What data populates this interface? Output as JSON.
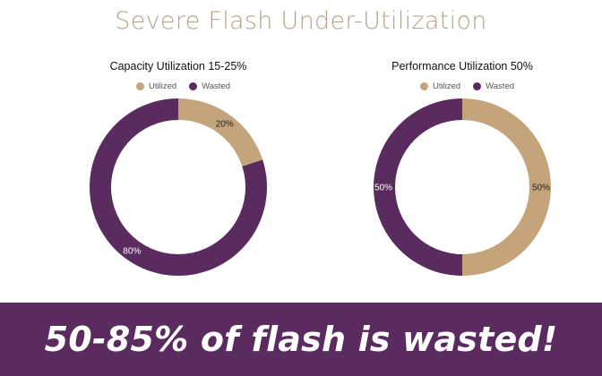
{
  "slide": {
    "title": "Severe Flash Under-Utilization"
  },
  "banner": {
    "text": "50-85% of flash is wasted!"
  },
  "colors": {
    "utilized": "#c4a47a",
    "wasted": "#5a2b5e",
    "title": "#b7a285"
  },
  "chart_data": [
    {
      "type": "pie",
      "title": "Capacity Utilization 15-25%",
      "legend": [
        "Utilized",
        "Wasted"
      ],
      "legend_position": "top",
      "donut": true,
      "slices": [
        {
          "name": "Utilized",
          "value": 20,
          "label": "20%"
        },
        {
          "name": "Wasted",
          "value": 80,
          "label": "80%"
        }
      ]
    },
    {
      "type": "pie",
      "title": "Performance Utilization 50%",
      "legend": [
        "Utilized",
        "Wasted"
      ],
      "legend_position": "top",
      "donut": true,
      "slices": [
        {
          "name": "Utilized",
          "value": 50,
          "label": "50%"
        },
        {
          "name": "Wasted",
          "value": 50,
          "label": "50%"
        }
      ]
    }
  ]
}
